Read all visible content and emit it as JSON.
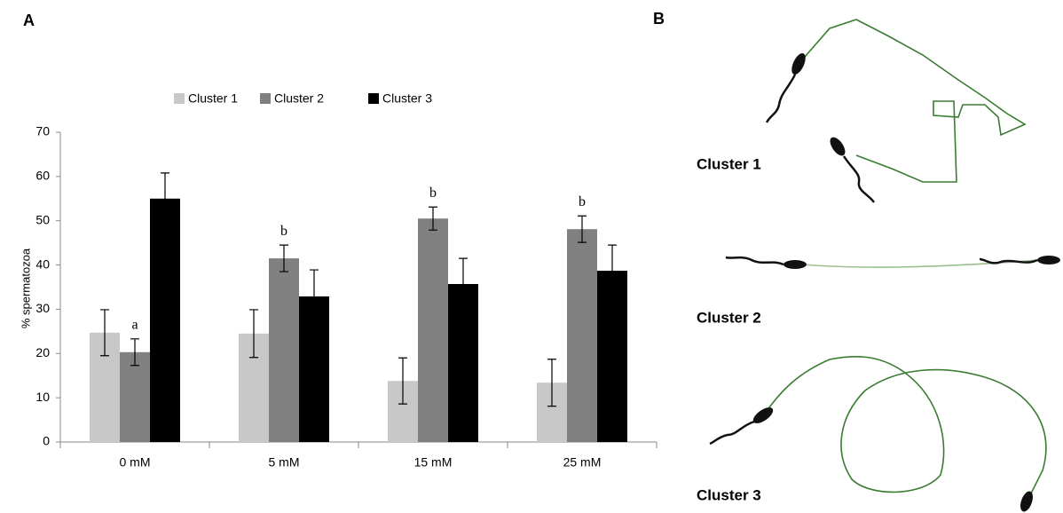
{
  "panels": [
    "A",
    "B"
  ],
  "chart_data": {
    "type": "bar",
    "ylabel": "% spermatozoa",
    "categories": [
      "0 mM",
      "5 mM",
      "15 mM",
      "25 mM"
    ],
    "series": [
      {
        "name": "Cluster 1",
        "color": "#c8c8c8",
        "values": [
          24.7,
          24.5,
          13.8,
          13.4
        ],
        "errors": [
          5.2,
          5.4,
          5.2,
          5.3
        ]
      },
      {
        "name": "Cluster 2",
        "color": "#808080",
        "values": [
          20.3,
          41.5,
          50.5,
          48.1
        ],
        "errors": [
          3,
          3,
          2.6,
          3
        ]
      },
      {
        "name": "Cluster 3",
        "color": "#000000",
        "values": [
          55,
          32.9,
          35.7,
          38.7
        ],
        "errors": [
          5.8,
          6,
          5.8,
          5.8
        ]
      }
    ],
    "annotations": [
      "a",
      "b",
      "b",
      "b"
    ],
    "ylim": [
      0,
      70
    ],
    "yticks": [
      0,
      10,
      20,
      30,
      40,
      50,
      60,
      70
    ],
    "grid": false,
    "legend": "top"
  },
  "diagram": {
    "labels": [
      "Cluster 1",
      "Cluster 2",
      "Cluster 3"
    ]
  }
}
